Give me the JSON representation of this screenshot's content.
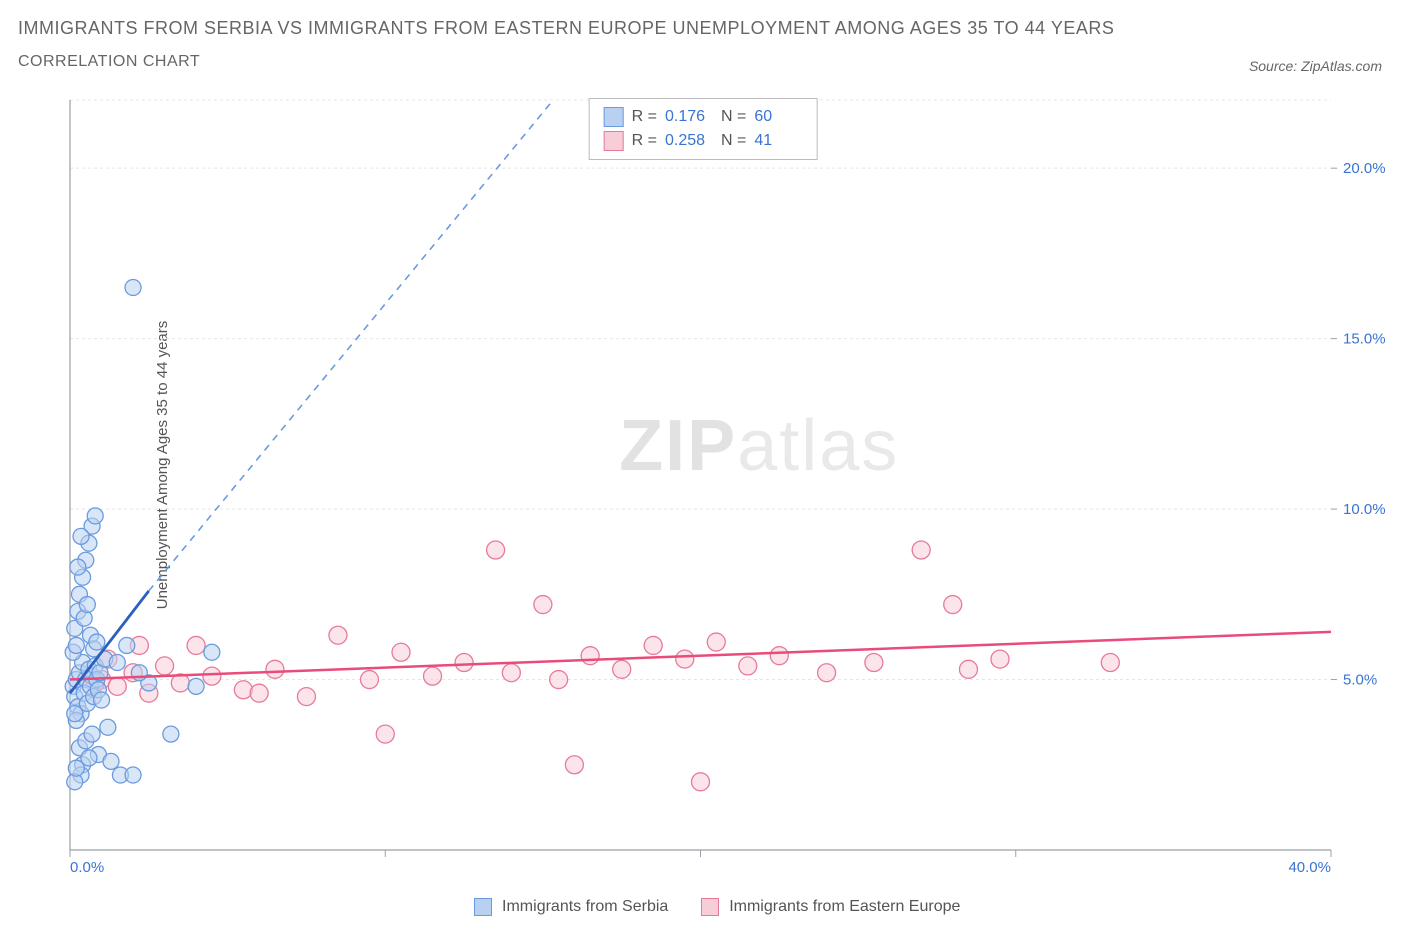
{
  "title_line1": "IMMIGRANTS FROM SERBIA VS IMMIGRANTS FROM EASTERN EUROPE UNEMPLOYMENT AMONG AGES 35 TO 44 YEARS",
  "title_line2": "CORRELATION CHART",
  "source_label": "Source: ZipAtlas.com",
  "y_axis_label": "Unemployment Among Ages 35 to 44 years",
  "watermark_bold": "ZIP",
  "watermark_light": "atlas",
  "chart": {
    "type": "scatter",
    "xlim": [
      0,
      40
    ],
    "ylim": [
      0,
      22
    ],
    "x_ticks": [
      0,
      10,
      20,
      30,
      40
    ],
    "x_tick_labels": [
      "0.0%",
      "",
      "",
      "",
      "40.0%"
    ],
    "y_ticks": [
      5,
      10,
      15,
      20
    ],
    "y_tick_labels": [
      "5.0%",
      "10.0%",
      "15.0%",
      "20.0%"
    ],
    "grid_y": [
      5,
      10,
      15,
      20,
      22
    ],
    "grid_color": "#e5e5e5",
    "axis_color": "#9aa0a6",
    "background_color": "#ffffff",
    "tick_label_color": "#3973d4",
    "series": [
      {
        "name": "Immigrants from Serbia",
        "color_fill": "#b9d1f0",
        "color_stroke": "#6a9be0",
        "marker_radius": 8,
        "fill_opacity": 0.55,
        "R": "0.176",
        "N": "60",
        "trend": {
          "x1": 0,
          "y1": 4.6,
          "x2": 2.5,
          "y2": 7.6,
          "x2_ext": 18,
          "y2_ext": 25,
          "solid_color": "#2b5fc1",
          "dash_color": "#6a9be0"
        },
        "points": [
          [
            0.1,
            4.8
          ],
          [
            0.2,
            5.0
          ],
          [
            0.15,
            4.5
          ],
          [
            0.3,
            5.2
          ],
          [
            0.25,
            4.2
          ],
          [
            0.4,
            5.5
          ],
          [
            0.1,
            5.8
          ],
          [
            0.35,
            4.0
          ],
          [
            0.5,
            5.0
          ],
          [
            0.2,
            6.0
          ],
          [
            0.45,
            4.6
          ],
          [
            0.6,
            5.3
          ],
          [
            0.15,
            6.5
          ],
          [
            0.55,
            4.3
          ],
          [
            0.7,
            5.1
          ],
          [
            0.25,
            7.0
          ],
          [
            0.65,
            4.8
          ],
          [
            0.8,
            5.4
          ],
          [
            0.3,
            7.5
          ],
          [
            0.75,
            4.5
          ],
          [
            0.4,
            8.0
          ],
          [
            0.85,
            5.0
          ],
          [
            0.5,
            8.5
          ],
          [
            0.9,
            4.7
          ],
          [
            0.6,
            9.0
          ],
          [
            0.95,
            5.2
          ],
          [
            0.7,
            9.5
          ],
          [
            1.0,
            4.4
          ],
          [
            0.8,
            9.8
          ],
          [
            1.1,
            5.6
          ],
          [
            0.3,
            3.0
          ],
          [
            0.5,
            3.2
          ],
          [
            0.7,
            3.4
          ],
          [
            0.9,
            2.8
          ],
          [
            1.2,
            3.6
          ],
          [
            0.4,
            2.5
          ],
          [
            0.6,
            2.7
          ],
          [
            1.3,
            2.6
          ],
          [
            1.6,
            2.2
          ],
          [
            2.0,
            2.2
          ],
          [
            2.5,
            4.9
          ],
          [
            3.2,
            3.4
          ],
          [
            4.0,
            4.8
          ],
          [
            4.5,
            5.8
          ],
          [
            1.5,
            5.5
          ],
          [
            1.8,
            6.0
          ],
          [
            2.2,
            5.2
          ],
          [
            0.2,
            3.8
          ],
          [
            0.35,
            2.2
          ],
          [
            0.15,
            2.0
          ],
          [
            0.45,
            6.8
          ],
          [
            0.55,
            7.2
          ],
          [
            0.25,
            8.3
          ],
          [
            0.65,
            6.3
          ],
          [
            0.35,
            9.2
          ],
          [
            0.75,
            5.9
          ],
          [
            0.15,
            4.0
          ],
          [
            0.85,
            6.1
          ],
          [
            0.2,
            2.4
          ],
          [
            2.0,
            16.5
          ]
        ]
      },
      {
        "name": "Immigrants from Eastern Europe",
        "color_fill": "#f7cdd8",
        "color_stroke": "#e77a9b",
        "marker_radius": 9,
        "fill_opacity": 0.55,
        "R": "0.258",
        "N": "41",
        "trend": {
          "x1": 0,
          "y1": 5.0,
          "x2": 40,
          "y2": 6.4,
          "solid_color": "#e94b7a"
        },
        "points": [
          [
            1.0,
            5.0
          ],
          [
            1.5,
            4.8
          ],
          [
            2.0,
            5.2
          ],
          [
            2.5,
            4.6
          ],
          [
            3.0,
            5.4
          ],
          [
            3.5,
            4.9
          ],
          [
            4.5,
            5.1
          ],
          [
            5.5,
            4.7
          ],
          [
            6.5,
            5.3
          ],
          [
            7.5,
            4.5
          ],
          [
            8.5,
            6.3
          ],
          [
            9.5,
            5.0
          ],
          [
            10.5,
            5.8
          ],
          [
            11.5,
            5.1
          ],
          [
            12.5,
            5.5
          ],
          [
            13.5,
            8.8
          ],
          [
            14.0,
            5.2
          ],
          [
            15.0,
            7.2
          ],
          [
            15.5,
            5.0
          ],
          [
            16.5,
            5.7
          ],
          [
            17.5,
            5.3
          ],
          [
            18.5,
            6.0
          ],
          [
            19.5,
            5.6
          ],
          [
            20.5,
            6.1
          ],
          [
            21.5,
            5.4
          ],
          [
            22.5,
            5.7
          ],
          [
            24.0,
            5.2
          ],
          [
            25.5,
            5.5
          ],
          [
            27.0,
            8.8
          ],
          [
            28.0,
            7.2
          ],
          [
            28.5,
            5.3
          ],
          [
            29.5,
            5.6
          ],
          [
            33.0,
            5.5
          ],
          [
            16.0,
            2.5
          ],
          [
            20.0,
            2.0
          ],
          [
            10.0,
            3.4
          ],
          [
            4.0,
            6.0
          ],
          [
            6.0,
            4.6
          ],
          [
            2.2,
            6.0
          ],
          [
            1.2,
            5.6
          ],
          [
            0.8,
            4.9
          ]
        ]
      }
    ]
  },
  "legend": {
    "series1_label": "Immigrants from Serbia",
    "series2_label": "Immigrants from Eastern Europe"
  },
  "stat_legend": {
    "R_label": "R =",
    "N_label": "N ="
  }
}
